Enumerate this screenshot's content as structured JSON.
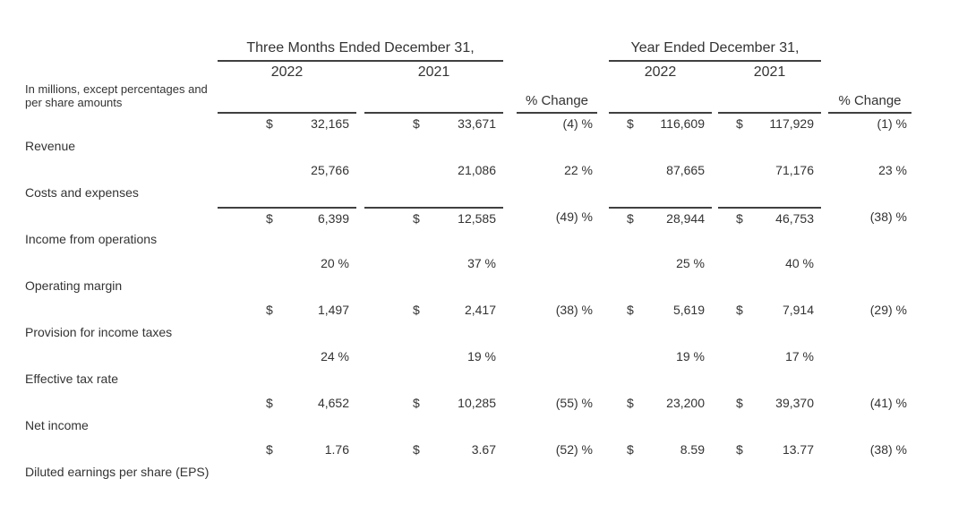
{
  "page": {
    "background": "#ffffff",
    "text_color": "#333333",
    "rule_color": "#404040"
  },
  "table": {
    "units_note": "In millions, except percentages and per share amounts",
    "groups": {
      "three_months": "Three Months Ended December 31,",
      "full_year": "Year Ended December 31,"
    },
    "year_headers": [
      "2022",
      "2021",
      "2022",
      "2021"
    ],
    "pct_change_header": "% Change",
    "rows": [
      {
        "label": "Revenue",
        "cells": [
          {
            "cur": "$",
            "val": "32,165"
          },
          {
            "cur": "$",
            "val": "33,671"
          },
          {
            "val": "(4) %"
          },
          {
            "cur": "$",
            "val": "116,609"
          },
          {
            "cur": "$",
            "val": "117,929"
          },
          {
            "val": "(1) %"
          }
        ]
      },
      {
        "label": "Costs and expenses",
        "cells": [
          {
            "val": "25,766"
          },
          {
            "val": "21,086"
          },
          {
            "val": "22 %"
          },
          {
            "val": "87,665"
          },
          {
            "val": "71,176"
          },
          {
            "val": "23 %"
          }
        ]
      },
      {
        "label": "Income from operations",
        "cells": [
          {
            "cur": "$",
            "val": "6,399"
          },
          {
            "cur": "$",
            "val": "12,585"
          },
          {
            "val": "(49) %"
          },
          {
            "cur": "$",
            "val": "28,944"
          },
          {
            "cur": "$",
            "val": "46,753"
          },
          {
            "val": "(38) %"
          }
        ]
      },
      {
        "label": "Operating margin",
        "cells": [
          {
            "val": "20 %"
          },
          {
            "val": "37 %"
          },
          {
            "val": ""
          },
          {
            "val": "25 %"
          },
          {
            "val": "40 %"
          },
          {
            "val": ""
          }
        ]
      },
      {
        "label": "Provision for income taxes",
        "cells": [
          {
            "cur": "$",
            "val": "1,497"
          },
          {
            "cur": "$",
            "val": "2,417"
          },
          {
            "val": "(38) %"
          },
          {
            "cur": "$",
            "val": "5,619"
          },
          {
            "cur": "$",
            "val": "7,914"
          },
          {
            "val": "(29) %"
          }
        ]
      },
      {
        "label": "Effective tax rate",
        "cells": [
          {
            "val": "24 %"
          },
          {
            "val": "19 %"
          },
          {
            "val": ""
          },
          {
            "val": "19 %"
          },
          {
            "val": "17 %"
          },
          {
            "val": ""
          }
        ]
      },
      {
        "label": "Net income",
        "cells": [
          {
            "cur": "$",
            "val": "4,652"
          },
          {
            "cur": "$",
            "val": "10,285"
          },
          {
            "val": "(55) %"
          },
          {
            "cur": "$",
            "val": "23,200"
          },
          {
            "cur": "$",
            "val": "39,370"
          },
          {
            "val": "(41) %"
          }
        ]
      },
      {
        "label": "Diluted earnings per share (EPS)",
        "cells": [
          {
            "cur": "$",
            "val": "1.76"
          },
          {
            "cur": "$",
            "val": "3.67"
          },
          {
            "val": "(52) %"
          },
          {
            "cur": "$",
            "val": "8.59"
          },
          {
            "cur": "$",
            "val": "13.77"
          },
          {
            "val": "(38) %"
          }
        ]
      }
    ]
  }
}
